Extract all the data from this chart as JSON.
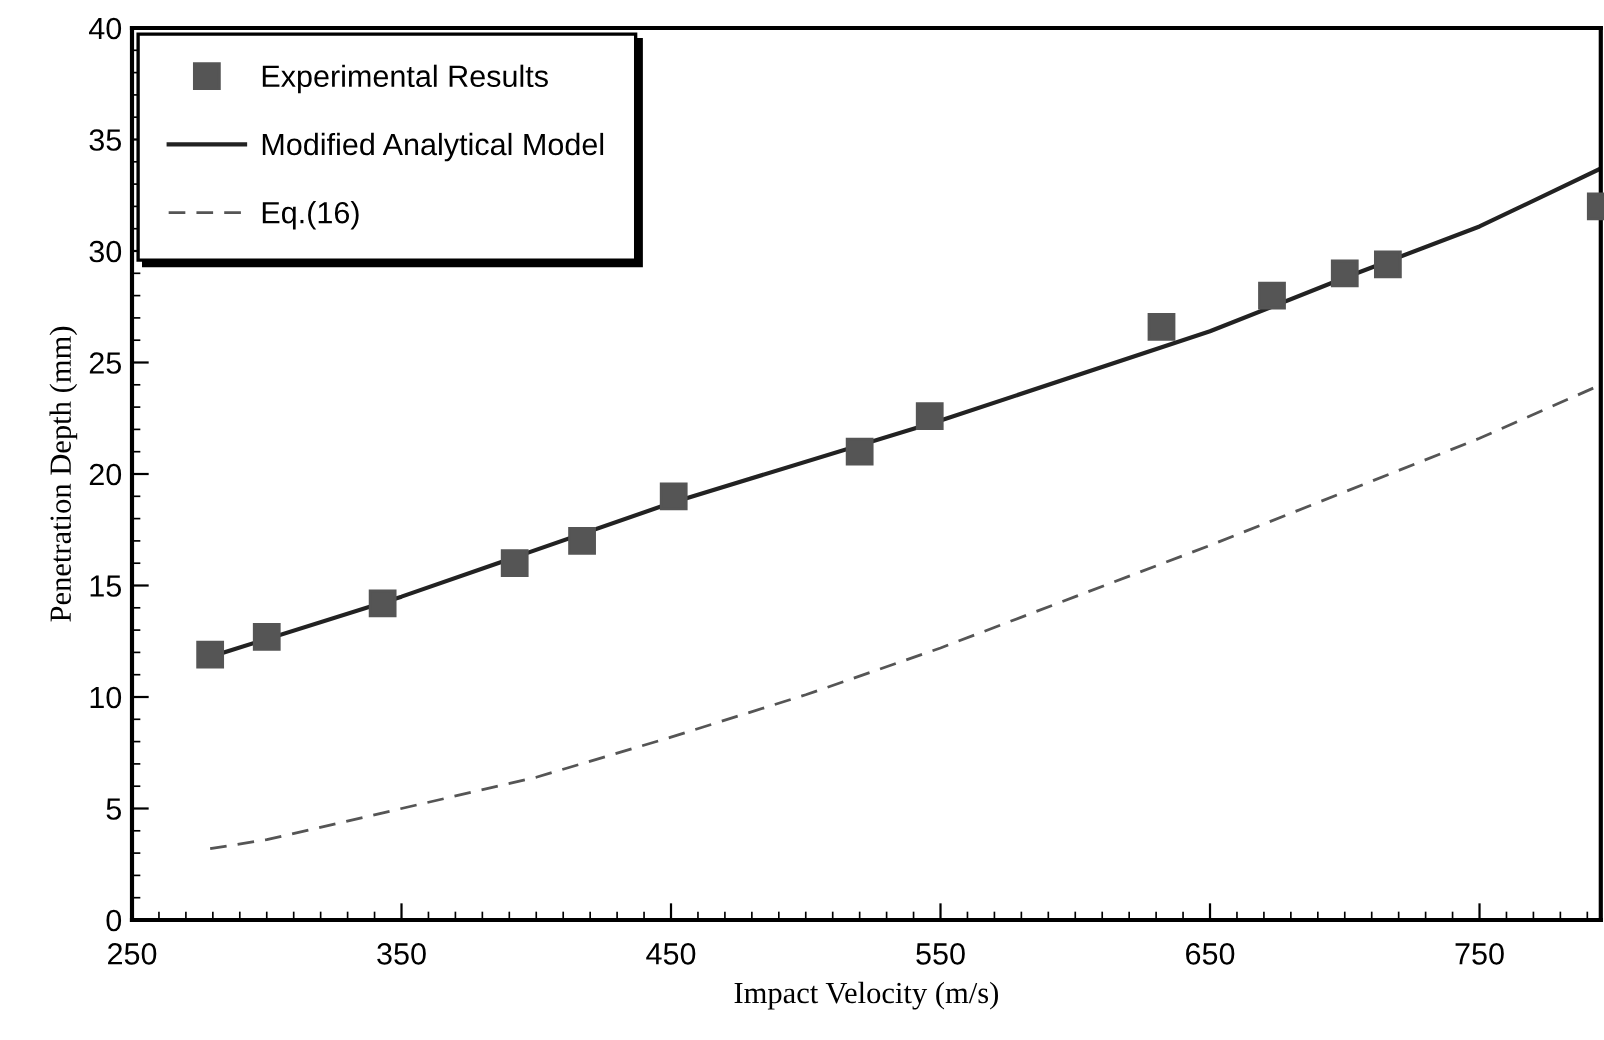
{
  "chart_data": {
    "type": "line",
    "xlabel": "Impact Velocity (m/s)",
    "ylabel": "Penetration Depth (mm)",
    "xlim": [
      250,
      795
    ],
    "ylim": [
      0,
      40
    ],
    "xticks": [
      250,
      350,
      450,
      550,
      650,
      750
    ],
    "yticks": [
      0,
      5,
      10,
      15,
      20,
      25,
      30,
      35,
      40
    ],
    "grid": false,
    "legend": "top left",
    "series": [
      {
        "name": "Experimental Results",
        "type": "scatter",
        "marker": "square",
        "color": "#555555",
        "x": [
          279,
          300,
          343,
          392,
          417,
          451,
          520,
          546,
          632,
          673,
          700,
          716,
          795
        ],
        "values": [
          11.9,
          12.7,
          14.2,
          16.0,
          17.0,
          19.0,
          21.0,
          22.6,
          26.6,
          28.0,
          29.0,
          29.4,
          32.0
        ]
      },
      {
        "name": "Modified Analytical Model",
        "line_style": "solid",
        "color": "#222222",
        "x": [
          279,
          350,
          450,
          550,
          650,
          700,
          750,
          795
        ],
        "values": [
          11.8,
          14.5,
          18.7,
          22.4,
          26.4,
          28.8,
          31.1,
          33.7
        ]
      },
      {
        "name": "Eq.(16)",
        "line_style": "dashed",
        "color": "#555555",
        "x": [
          279,
          300,
          350,
          400,
          450,
          500,
          550,
          600,
          650,
          700,
          750,
          795
        ],
        "values": [
          3.2,
          3.6,
          5.0,
          6.4,
          8.2,
          10.1,
          12.2,
          14.5,
          16.8,
          19.2,
          21.6,
          24.0
        ]
      }
    ]
  }
}
